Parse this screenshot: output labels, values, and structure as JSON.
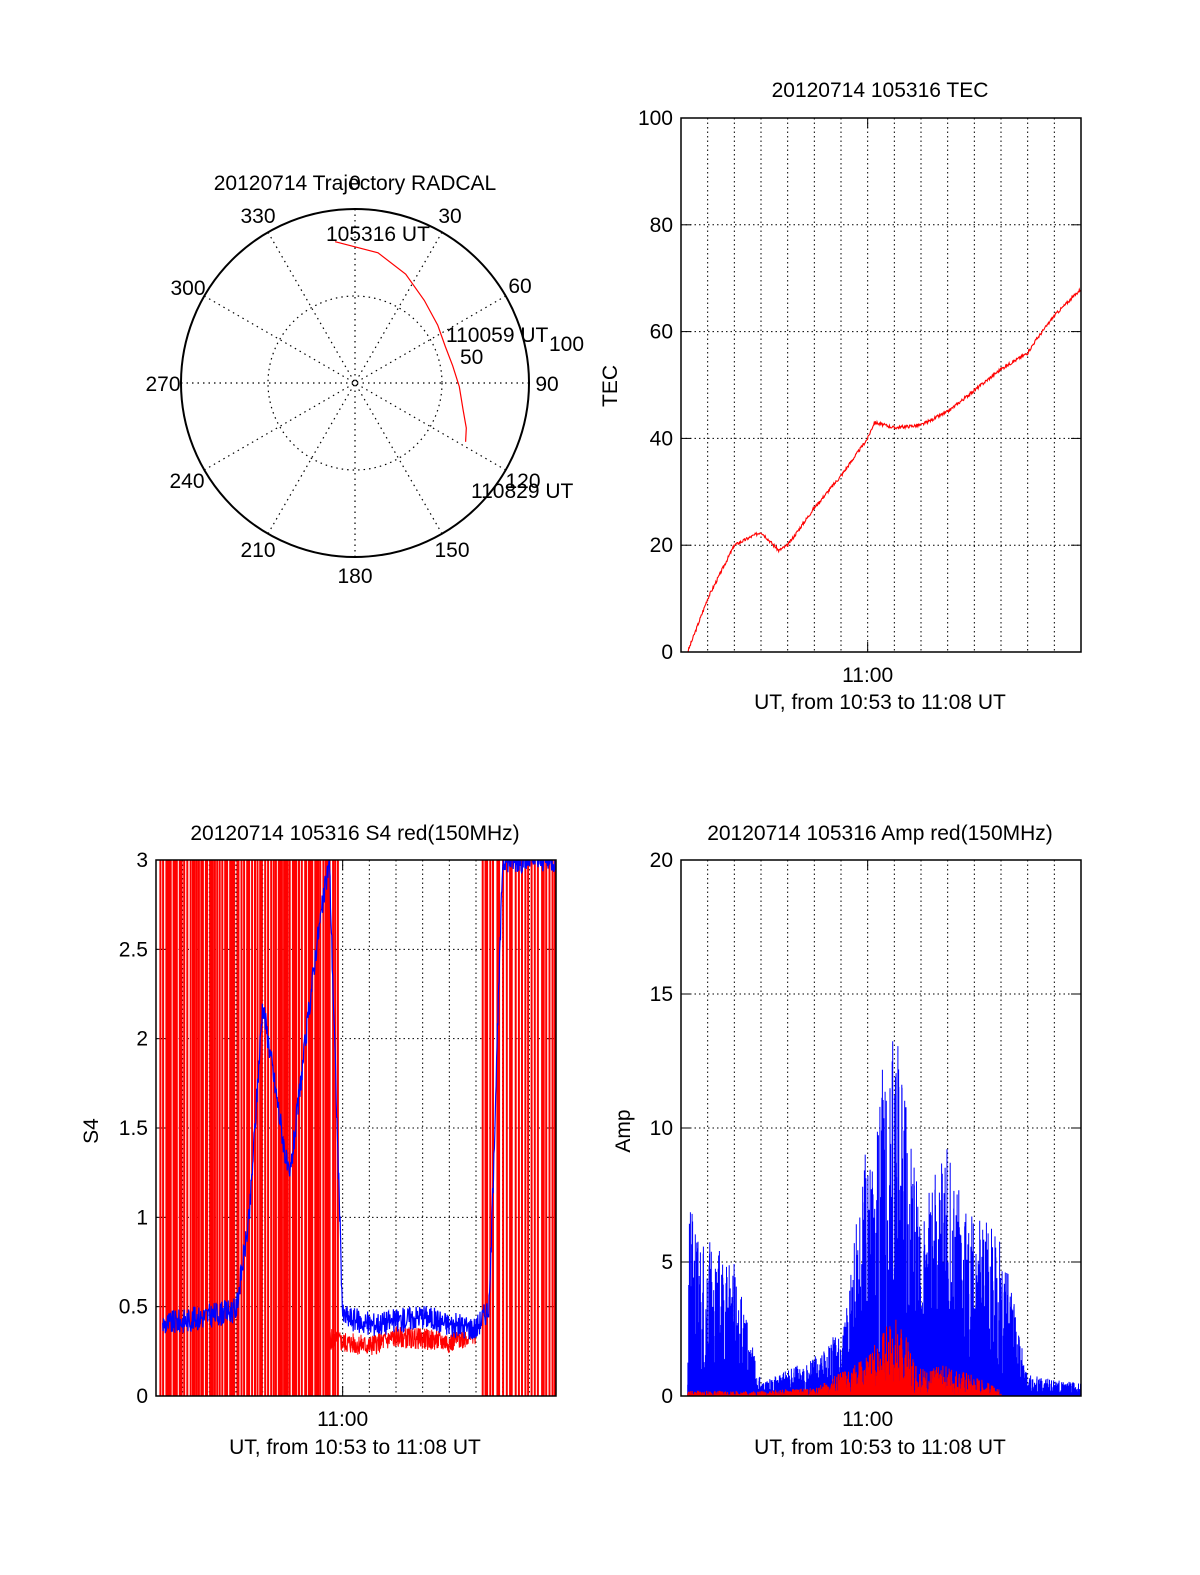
{
  "colors": {
    "red": "#ff0000",
    "blue": "#0000ff",
    "axis": "#000000"
  },
  "chart_data": [
    {
      "id": "polar",
      "type": "polar-trajectory",
      "title": "20120714 Trajectory RADCAL",
      "angle_labels": [
        "0",
        "30",
        "60",
        "90",
        "120",
        "150",
        "180",
        "210",
        "240",
        "270",
        "300",
        "330"
      ],
      "radius_labels": [
        "50",
        "100"
      ],
      "radius_max": 100,
      "annotations": [
        "105316 UT",
        "110059 UT",
        "110829 UT"
      ],
      "track": [
        [
          -8,
          82
        ],
        [
          10,
          76
        ],
        [
          25,
          69
        ],
        [
          40,
          62
        ],
        [
          55,
          58
        ],
        [
          68,
          56
        ],
        [
          80,
          57
        ],
        [
          92,
          60
        ],
        [
          104,
          64
        ],
        [
          112,
          69
        ],
        [
          118,
          72
        ]
      ]
    },
    {
      "id": "tec",
      "type": "line",
      "title": "20120714 105316 TEC",
      "ylabel": "TEC",
      "xlabel": "UT, from 10:53 to 11:08 UT",
      "xtick_labels": [
        "11:00"
      ],
      "ytick_labels": [
        "0",
        "20",
        "40",
        "60",
        "80",
        "100"
      ],
      "ylim": [
        0,
        100
      ],
      "series": [
        {
          "color": "red",
          "x": [
            "10:53:15",
            "10:54:00",
            "10:55:00",
            "10:56:00",
            "10:56:40",
            "10:57:00",
            "10:58:00",
            "10:59:00",
            "11:00:00",
            "11:00:15",
            "11:01:00",
            "11:02:00",
            "11:03:00",
            "11:04:00",
            "11:05:00",
            "11:06:00",
            "11:06:15",
            "11:07:00",
            "11:08:00"
          ],
          "y": [
            0,
            10,
            20,
            22.5,
            19,
            20,
            27,
            33,
            40,
            43,
            42,
            42.5,
            45,
            49,
            53,
            56,
            58,
            63,
            68
          ]
        }
      ]
    },
    {
      "id": "s4",
      "type": "line",
      "title": "20120714 105316 S4 red(150MHz)",
      "ylabel": "S4",
      "xlabel": "UT, from 10:53 to 11:08 UT",
      "xtick_labels": [
        "11:00"
      ],
      "ytick_labels": [
        "0",
        "0.5",
        "1",
        "1.5",
        "2",
        "2.5",
        "3"
      ],
      "ylim": [
        0,
        3
      ],
      "series": [
        {
          "color": "blue",
          "x": [
            "10:53:15",
            "10:54:00",
            "10:55:00",
            "10:56:00",
            "10:56:30",
            "10:57:00",
            "10:58:00",
            "10:59:00",
            "10:59:30",
            "11:00:00",
            "11:01:00",
            "11:02:00",
            "11:03:00",
            "11:04:00",
            "11:05:00",
            "11:05:30",
            "11:06:00",
            "11:07:00",
            "11:08:00"
          ],
          "y": [
            0.4,
            0.42,
            0.45,
            0.48,
            1.0,
            2.2,
            1.2,
            2.5,
            3.0,
            0.45,
            0.4,
            0.42,
            0.45,
            0.4,
            0.38,
            0.5,
            3.0,
            3.0,
            3.0
          ]
        },
        {
          "color": "red",
          "x": [
            "10:59:30",
            "11:00:00",
            "11:01:00",
            "11:02:00",
            "11:03:00",
            "11:04:00",
            "11:05:00"
          ],
          "y": [
            0.32,
            0.3,
            0.28,
            0.33,
            0.32,
            0.3,
            0.35
          ]
        }
      ]
    },
    {
      "id": "amp",
      "type": "line",
      "title": "20120714 105316 Amp red(150MHz)",
      "ylabel": "Amp",
      "xlabel": "UT, from 10:53 to 11:08 UT",
      "xtick_labels": [
        "11:00"
      ],
      "ytick_labels": [
        "0",
        "5",
        "10",
        "15",
        "20"
      ],
      "ylim": [
        0,
        20
      ],
      "series": [
        {
          "color": "blue",
          "x": [
            "10:53:15",
            "10:55:00",
            "10:56:00",
            "10:57:00",
            "10:58:00",
            "10:59:00",
            "11:00:00",
            "11:01:00",
            "11:02:00",
            "11:03:00",
            "11:04:00",
            "11:05:00",
            "11:06:00",
            "11:07:00",
            "11:08:00"
          ],
          "y": [
            7,
            5,
            0.5,
            1,
            1.5,
            2.5,
            10,
            14,
            7,
            9.5,
            7,
            6,
            0.8,
            0.6,
            0.5
          ]
        },
        {
          "color": "red",
          "x": [
            "10:53:15",
            "10:56:00",
            "10:58:00",
            "11:00:00",
            "11:01:00",
            "11:02:00",
            "11:03:00",
            "11:04:00",
            "11:05:00"
          ],
          "y": [
            0.2,
            0.2,
            0.3,
            1.5,
            3.2,
            1.0,
            1.2,
            0.8,
            0.2
          ]
        }
      ]
    }
  ]
}
